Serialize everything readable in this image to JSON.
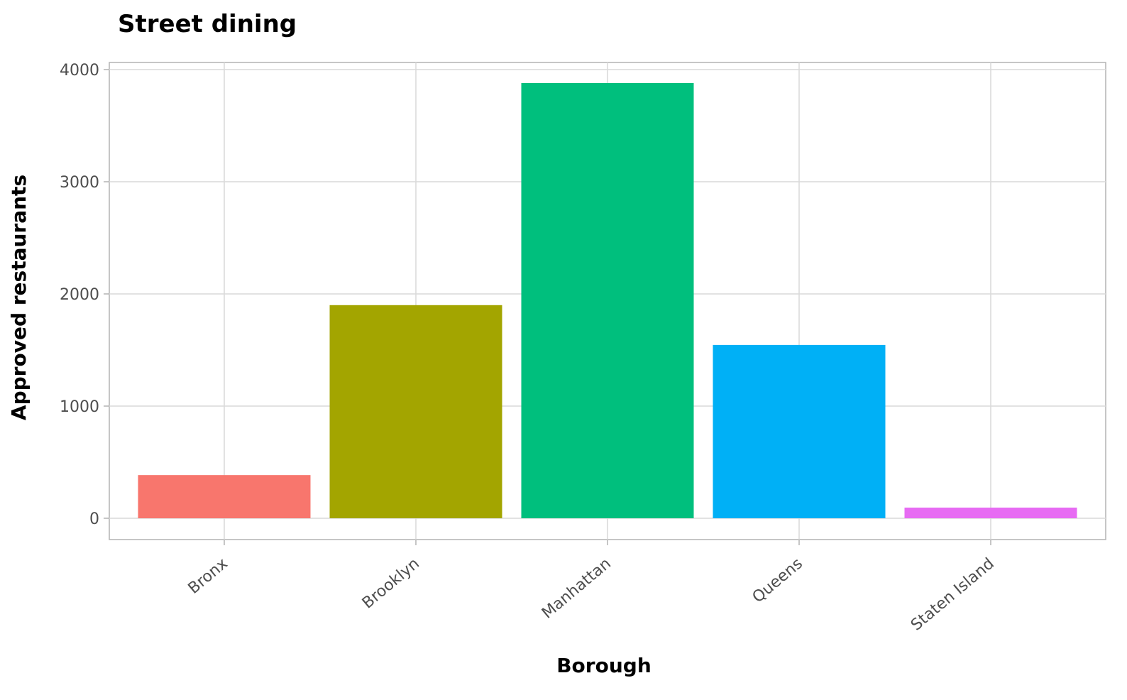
{
  "chart_data": {
    "type": "bar",
    "title": "Street dining",
    "xlabel": "Borough",
    "ylabel": "Approved restaurants",
    "categories": [
      "Bronx",
      "Brooklyn",
      "Manhattan",
      "Queens",
      "Staten Island"
    ],
    "values": [
      385,
      1900,
      3880,
      1545,
      95
    ],
    "colors": [
      "#F8766D",
      "#A3A500",
      "#00BF7D",
      "#00B0F6",
      "#E76BF3"
    ],
    "ylim": [
      0,
      4000
    ],
    "yticks": [
      0,
      1000,
      2000,
      3000,
      4000
    ],
    "grid": true,
    "legend": "none"
  }
}
